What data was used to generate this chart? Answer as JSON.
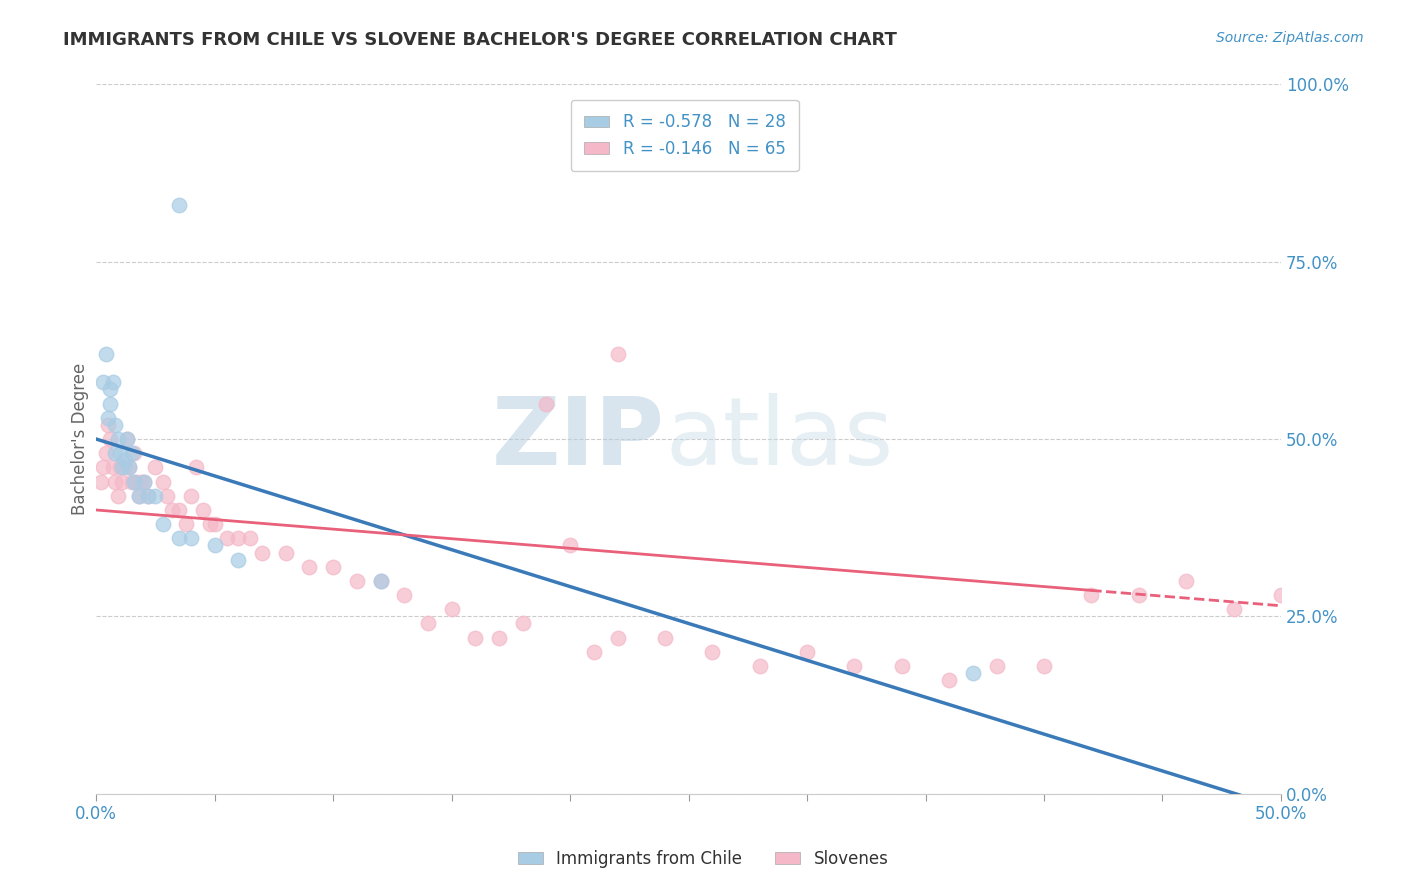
{
  "title": "IMMIGRANTS FROM CHILE VS SLOVENE BACHELOR'S DEGREE CORRELATION CHART",
  "source": "Source: ZipAtlas.com",
  "ylabel_label": "Bachelor's Degree",
  "xmin": 0.0,
  "xmax": 0.5,
  "ymin": 0.0,
  "ymax": 1.0,
  "xticks": [
    0.0,
    0.05,
    0.1,
    0.15,
    0.2,
    0.25,
    0.3,
    0.35,
    0.4,
    0.45,
    0.5
  ],
  "ytick_labels": [
    "0.0%",
    "25.0%",
    "50.0%",
    "75.0%",
    "100.0%"
  ],
  "yticks": [
    0.0,
    0.25,
    0.5,
    0.75,
    1.0
  ],
  "legend_r1": "R = -0.578",
  "legend_n1": "N = 28",
  "legend_r2": "R = -0.146",
  "legend_n2": "N = 65",
  "color_blue": "#a8cce4",
  "color_pink": "#f4b8c8",
  "line_color_blue": "#3a7ab8",
  "line_color_pink": "#e8607a",
  "watermark_zip": "ZIP",
  "watermark_atlas": "atlas",
  "blue_line_x0": 0.0,
  "blue_line_y0": 0.5,
  "blue_line_x1": 0.5,
  "blue_line_y1": -0.02,
  "pink_line_x0": 0.0,
  "pink_line_y0": 0.4,
  "pink_line_x1": 0.5,
  "pink_line_y1": 0.265,
  "blue_scatter_x": [
    0.003,
    0.004,
    0.005,
    0.006,
    0.006,
    0.007,
    0.008,
    0.008,
    0.009,
    0.01,
    0.011,
    0.012,
    0.013,
    0.014,
    0.015,
    0.016,
    0.018,
    0.02,
    0.022,
    0.025,
    0.028,
    0.035,
    0.04,
    0.05,
    0.06,
    0.12,
    0.035,
    0.37
  ],
  "blue_scatter_y": [
    0.58,
    0.62,
    0.53,
    0.55,
    0.57,
    0.58,
    0.48,
    0.52,
    0.5,
    0.48,
    0.46,
    0.47,
    0.5,
    0.46,
    0.48,
    0.44,
    0.42,
    0.44,
    0.42,
    0.42,
    0.38,
    0.36,
    0.36,
    0.35,
    0.33,
    0.3,
    0.83,
    0.17
  ],
  "pink_scatter_x": [
    0.002,
    0.003,
    0.004,
    0.005,
    0.006,
    0.007,
    0.008,
    0.009,
    0.01,
    0.011,
    0.012,
    0.013,
    0.014,
    0.015,
    0.016,
    0.017,
    0.018,
    0.019,
    0.02,
    0.022,
    0.025,
    0.028,
    0.03,
    0.032,
    0.035,
    0.038,
    0.04,
    0.042,
    0.045,
    0.048,
    0.05,
    0.055,
    0.06,
    0.065,
    0.07,
    0.08,
    0.09,
    0.1,
    0.11,
    0.12,
    0.13,
    0.14,
    0.15,
    0.16,
    0.17,
    0.18,
    0.2,
    0.21,
    0.22,
    0.24,
    0.26,
    0.28,
    0.3,
    0.32,
    0.34,
    0.36,
    0.38,
    0.4,
    0.42,
    0.44,
    0.46,
    0.48,
    0.5,
    0.22,
    0.19
  ],
  "pink_scatter_y": [
    0.44,
    0.46,
    0.48,
    0.52,
    0.5,
    0.46,
    0.44,
    0.42,
    0.46,
    0.44,
    0.46,
    0.5,
    0.46,
    0.44,
    0.48,
    0.44,
    0.42,
    0.44,
    0.44,
    0.42,
    0.46,
    0.44,
    0.42,
    0.4,
    0.4,
    0.38,
    0.42,
    0.46,
    0.4,
    0.38,
    0.38,
    0.36,
    0.36,
    0.36,
    0.34,
    0.34,
    0.32,
    0.32,
    0.3,
    0.3,
    0.28,
    0.24,
    0.26,
    0.22,
    0.22,
    0.24,
    0.35,
    0.2,
    0.22,
    0.22,
    0.2,
    0.18,
    0.2,
    0.18,
    0.18,
    0.16,
    0.18,
    0.18,
    0.28,
    0.28,
    0.3,
    0.26,
    0.28,
    0.62,
    0.55
  ]
}
